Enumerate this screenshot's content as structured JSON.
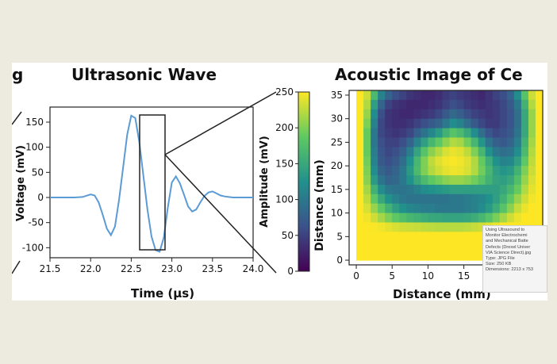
{
  "figure": {
    "left_panel_partial_title": "g",
    "left_title": "Ultrasonic Wave",
    "right_title": "Acoustic Image of Ce",
    "colorbar": {
      "label": "Amplitude (mV)",
      "ticks": [
        "250",
        "200",
        "150",
        "100",
        "50",
        "0"
      ],
      "colormap": [
        "#440154",
        "#3b528b",
        "#21918c",
        "#5ec962",
        "#fde725"
      ]
    }
  },
  "chart_data": [
    {
      "type": "line",
      "title": "Ultrasonic Wave",
      "xlabel": "Time (μs)",
      "ylabel": "Voltage (mV)",
      "xlim": [
        21.5,
        24.0
      ],
      "ylim": [
        -120,
        180
      ],
      "xticks": [
        "21.5",
        "22.0",
        "22.5",
        "23.0",
        "23.5",
        "24.0"
      ],
      "yticks": [
        "150",
        "100",
        "50",
        "0",
        "-50",
        "-100"
      ],
      "line_color": "#5b9bd5",
      "series": [
        {
          "x": [
            21.5,
            21.6,
            21.7,
            21.8,
            21.9,
            22.0,
            22.05,
            22.1,
            22.15,
            22.2,
            22.25,
            22.3,
            22.35,
            22.4,
            22.45,
            22.5,
            22.55,
            22.6,
            22.65,
            22.7,
            22.75,
            22.8,
            22.85,
            22.9,
            22.95,
            23.0,
            23.05,
            23.1,
            23.15,
            23.2,
            23.25,
            23.3,
            23.35,
            23.4,
            23.45,
            23.5,
            23.55,
            23.6,
            23.65,
            23.7,
            23.75,
            23.8,
            23.9,
            24.0
          ],
          "values": [
            0,
            0,
            0,
            0,
            1,
            6,
            4,
            -10,
            -35,
            -62,
            -75,
            -58,
            -5,
            60,
            125,
            163,
            158,
            110,
            42,
            -25,
            -78,
            -105,
            -108,
            -80,
            -20,
            30,
            42,
            28,
            5,
            -18,
            -28,
            -24,
            -10,
            3,
            10,
            12,
            8,
            4,
            2,
            1,
            0,
            0,
            0,
            0
          ]
        }
      ]
    },
    {
      "type": "heatmap",
      "title": "Acoustic Image of Ce",
      "xlabel": "Distance (mm)",
      "ylabel": "Distance (mm)",
      "xlim": [
        -1,
        26
      ],
      "ylim": [
        -1,
        36
      ],
      "xticks": [
        "0",
        "5",
        "10",
        "15"
      ],
      "yticks": [
        "35",
        "30",
        "25",
        "20",
        "15",
        "10",
        "5",
        "0"
      ],
      "colorbar_range": [
        0,
        250
      ],
      "value_range_rows": [
        36,
        0
      ],
      "value_range_cols": [
        0,
        26
      ],
      "values": [
        [
          250,
          230,
          170,
          110,
          80,
          60,
          50,
          40,
          35,
          30,
          30,
          35,
          45,
          50,
          45,
          40,
          35,
          30,
          40,
          50,
          60,
          80,
          120,
          180,
          230,
          250
        ],
        [
          250,
          220,
          140,
          80,
          50,
          40,
          35,
          30,
          30,
          30,
          35,
          40,
          50,
          60,
          55,
          45,
          40,
          35,
          40,
          45,
          55,
          70,
          100,
          160,
          220,
          250
        ],
        [
          250,
          210,
          120,
          60,
          40,
          35,
          30,
          30,
          35,
          40,
          45,
          55,
          70,
          85,
          75,
          60,
          50,
          45,
          40,
          45,
          55,
          65,
          90,
          150,
          210,
          250
        ],
        [
          250,
          200,
          110,
          55,
          40,
          35,
          35,
          40,
          50,
          60,
          70,
          80,
          100,
          120,
          110,
          90,
          70,
          55,
          45,
          45,
          55,
          65,
          90,
          150,
          210,
          250
        ],
        [
          250,
          190,
          100,
          55,
          45,
          40,
          45,
          55,
          75,
          95,
          115,
          135,
          160,
          180,
          170,
          150,
          120,
          90,
          65,
          55,
          60,
          70,
          95,
          150,
          210,
          250
        ],
        [
          250,
          190,
          100,
          60,
          50,
          50,
          60,
          80,
          110,
          140,
          165,
          185,
          205,
          220,
          215,
          195,
          165,
          130,
          95,
          75,
          70,
          80,
          105,
          160,
          215,
          250
        ],
        [
          250,
          190,
          105,
          65,
          55,
          60,
          75,
          105,
          145,
          180,
          205,
          220,
          235,
          242,
          238,
          225,
          200,
          165,
          125,
          100,
          90,
          95,
          120,
          170,
          220,
          250
        ],
        [
          250,
          195,
          110,
          70,
          60,
          70,
          90,
          125,
          165,
          200,
          225,
          238,
          245,
          248,
          245,
          238,
          220,
          190,
          155,
          125,
          110,
          115,
          140,
          185,
          225,
          250
        ],
        [
          250,
          200,
          120,
          80,
          70,
          80,
          100,
          135,
          170,
          200,
          220,
          232,
          240,
          244,
          242,
          235,
          220,
          195,
          165,
          140,
          130,
          135,
          160,
          200,
          230,
          250
        ],
        [
          250,
          205,
          135,
          95,
          80,
          85,
          100,
          125,
          150,
          170,
          185,
          195,
          205,
          210,
          210,
          205,
          195,
          180,
          160,
          145,
          140,
          150,
          175,
          210,
          235,
          250
        ],
        [
          250,
          215,
          160,
          120,
          100,
          95,
          95,
          100,
          110,
          120,
          125,
          130,
          135,
          140,
          140,
          140,
          140,
          140,
          140,
          140,
          150,
          165,
          190,
          220,
          240,
          250
        ],
        [
          250,
          225,
          185,
          150,
          125,
          110,
          100,
          95,
          95,
          95,
          95,
          95,
          95,
          100,
          100,
          105,
          110,
          115,
          125,
          140,
          160,
          185,
          210,
          232,
          245,
          250
        ],
        [
          250,
          235,
          210,
          185,
          160,
          140,
          125,
          115,
          110,
          105,
          105,
          100,
          100,
          100,
          100,
          105,
          110,
          120,
          135,
          155,
          180,
          205,
          228,
          242,
          250,
          250
        ],
        [
          250,
          245,
          232,
          215,
          200,
          185,
          175,
          165,
          160,
          155,
          150,
          148,
          145,
          145,
          145,
          148,
          155,
          165,
          180,
          198,
          215,
          232,
          243,
          250,
          250,
          250
        ],
        [
          250,
          250,
          248,
          245,
          240,
          235,
          232,
          230,
          228,
          226,
          224,
          222,
          222,
          222,
          222,
          224,
          228,
          232,
          238,
          244,
          248,
          250,
          250,
          250,
          250,
          250
        ],
        [
          250,
          250,
          250,
          250,
          250,
          250,
          250,
          250,
          250,
          250,
          250,
          250,
          250,
          250,
          250,
          250,
          250,
          250,
          250,
          250,
          250,
          250,
          250,
          250,
          250,
          250
        ],
        [
          250,
          250,
          250,
          250,
          250,
          250,
          250,
          250,
          250,
          250,
          250,
          250,
          250,
          250,
          250,
          250,
          250,
          250,
          250,
          250,
          250,
          250,
          250,
          250,
          250,
          250
        ],
        [
          250,
          250,
          250,
          250,
          250,
          250,
          250,
          250,
          250,
          250,
          250,
          250,
          250,
          250,
          250,
          250,
          250,
          250,
          250,
          250,
          250,
          250,
          250,
          250,
          250,
          250
        ]
      ]
    }
  ],
  "tooltip": {
    "lines": [
      "Using Ultrasound to",
      "Monitor Electrochemi",
      "and Mechanical Batte",
      "Defects (Drexel Univer",
      "VIA Science Direct).jpg",
      "Type: JPG File",
      "Size: 250 KB",
      "Dimensions: 2213 x 753"
    ]
  }
}
